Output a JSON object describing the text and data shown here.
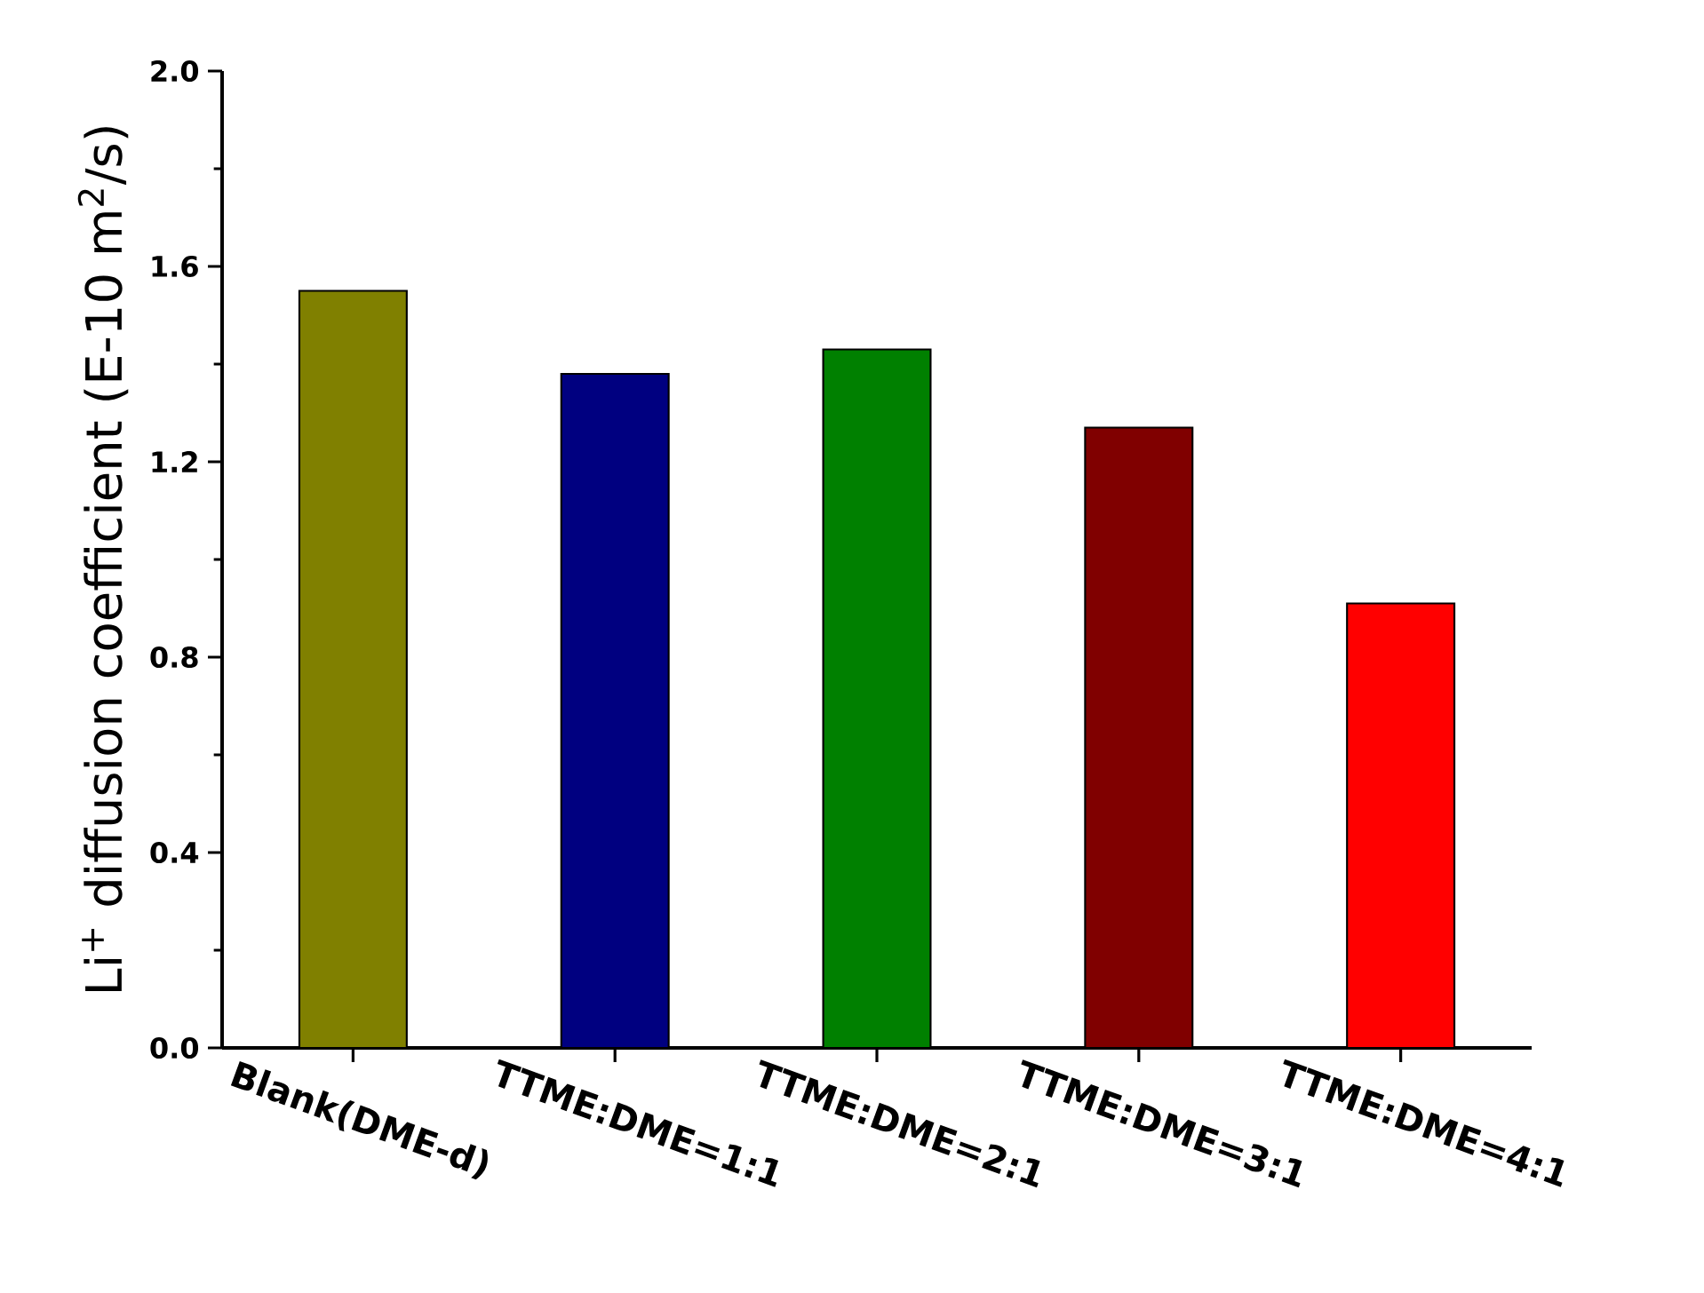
{
  "chart_data": {
    "type": "bar",
    "ylabel": "Li$^{+}$ diffusion coefficient (E-10 m$^{2}$/s)",
    "categories": [
      "Blank(DME-d)",
      "TTME:DME=1:1",
      "TTME:DME=2:1",
      "TTME:DME=3:1",
      "TTME:DME=4:1"
    ],
    "values": [
      1.55,
      1.38,
      1.43,
      1.27,
      0.91
    ],
    "colors": [
      "#808000",
      "#000080",
      "#008000",
      "#800000",
      "#ff0000"
    ],
    "ylim": [
      0,
      2.0
    ],
    "yticks": [
      {
        "value": 0,
        "label": "0.0"
      },
      {
        "value": 0.4,
        "label": "0.4"
      },
      {
        "value": 0.8,
        "label": "0.8"
      },
      {
        "value": 1.2,
        "label": "1.2"
      },
      {
        "value": 1.6,
        "label": "1.6"
      },
      {
        "value": 2.0,
        "label": "2.0"
      }
    ]
  }
}
